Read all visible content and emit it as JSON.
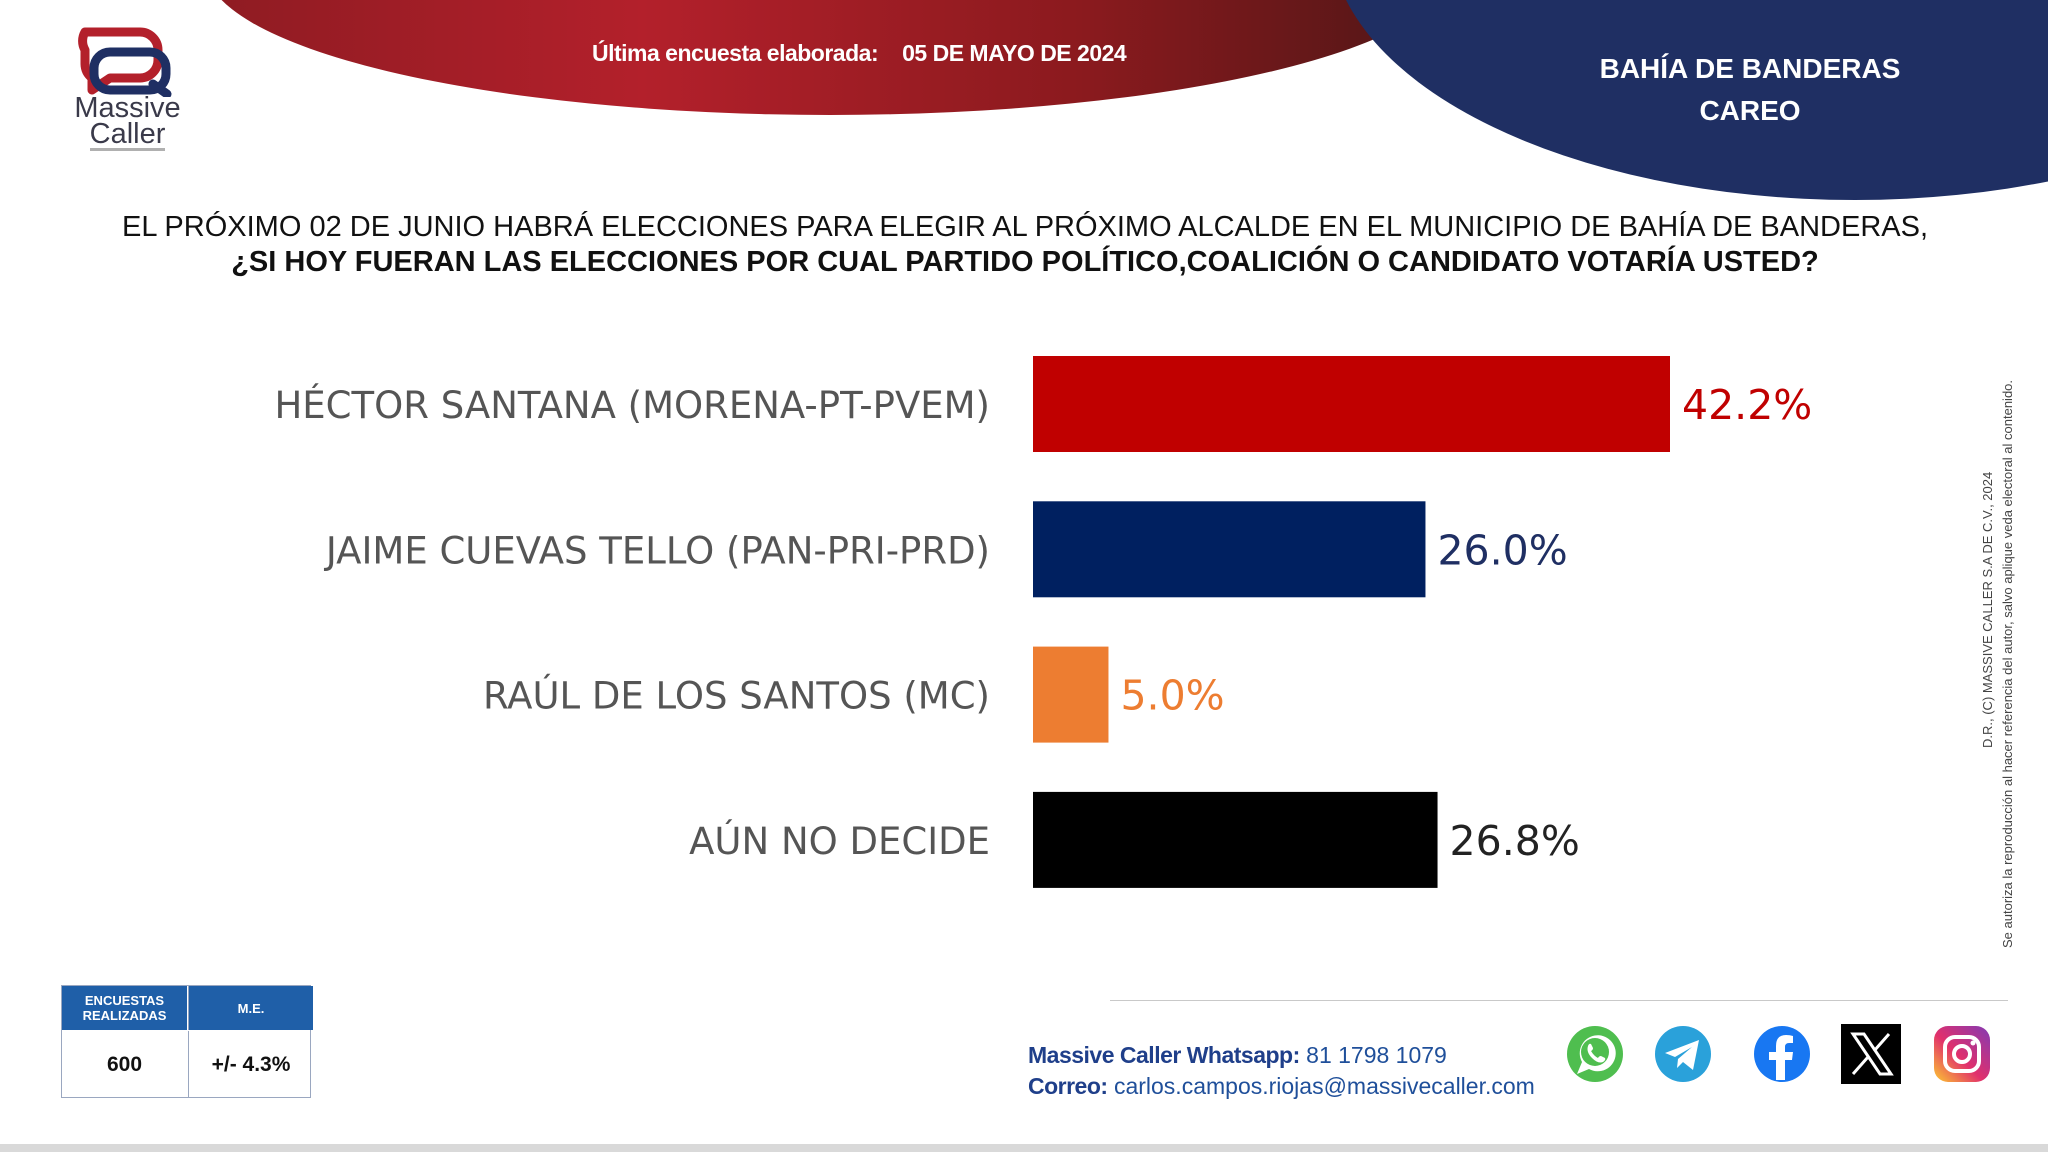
{
  "header": {
    "survey_label": "Última encuesta elaborada:",
    "survey_date": "05 DE MAYO DE 2024",
    "region": "BAHÍA DE BANDERAS",
    "subtitle": "CAREO"
  },
  "logo": {
    "line1": "Massive",
    "line2": "Caller"
  },
  "question": {
    "line1": "EL PRÓXIMO 02 DE JUNIO HABRÁ ELECCIONES PARA ELEGIR AL PRÓXIMO ALCALDE EN EL MUNICIPIO DE BAHÍA DE BANDERAS,",
    "line2": "¿SI HOY FUERAN LAS ELECCIONES POR CUAL PARTIDO POLÍTICO,COALICIÓN O CANDIDATO VOTARÍA USTED?"
  },
  "chart_data": {
    "type": "bar",
    "orientation": "horizontal",
    "categories": [
      "HÉCTOR SANTANA (MORENA-PT-PVEM)",
      "JAIME CUEVAS TELLO (PAN-PRI-PRD)",
      "RAÚL DE LOS SANTOS (MC)",
      "AÚN NO DECIDE"
    ],
    "values": [
      42.2,
      26.0,
      5.0,
      26.8
    ],
    "value_labels": [
      "42.2%",
      "26.0%",
      "5.0%",
      "26.8%"
    ],
    "colors": [
      "#c00000",
      "#002060",
      "#ed7d31",
      "#000000"
    ],
    "label_colors": [
      "#c00000",
      "#1f2f63",
      "#ed7d31",
      "#222222"
    ],
    "xlim": [
      0,
      42.2
    ],
    "grid": false,
    "legend": "none"
  },
  "legal": {
    "line1": "D.R., (C) MASSIVE CALLER S.A DE C.V., 2024",
    "line2": "Se autoriza la reproducción al hacer referencia del autor, salvo aplique veda electoral al contenido."
  },
  "stats": {
    "col1_header": "ENCUESTAS REALIZADAS",
    "col2_header": "M.E.",
    "col1_value": "600",
    "col2_value": "+/- 4.3%"
  },
  "contact": {
    "whatsapp_label": "Massive Caller Whatsapp:",
    "whatsapp_value": "81 1798 1079",
    "email_label": "Correo:",
    "email_value": "carlos.campos.riojas@massivecaller.com"
  },
  "social": [
    "whatsapp-icon",
    "telegram-icon",
    "facebook-icon",
    "x-icon",
    "instagram-icon"
  ]
}
